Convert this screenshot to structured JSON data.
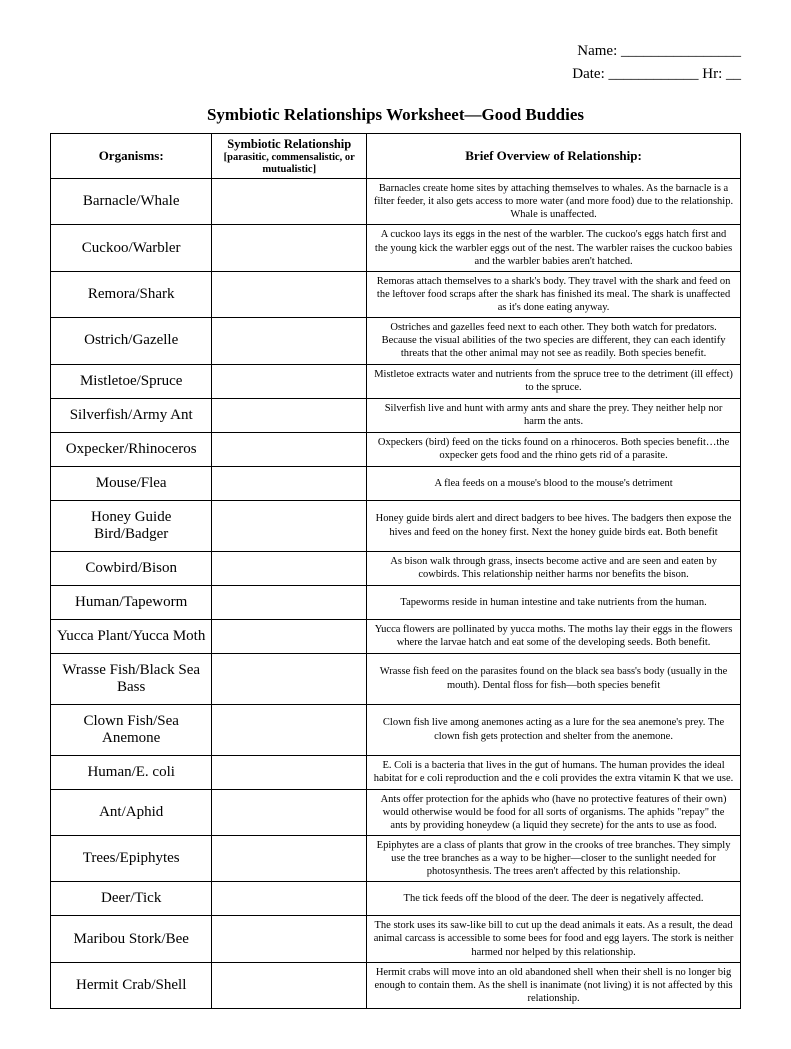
{
  "header": {
    "name_label": "Name: ________________",
    "date_label": "Date: ____________ Hr: __"
  },
  "title": "Symbiotic Relationships Worksheet—Good Buddies",
  "columns": {
    "c1": "Organisms:",
    "c2_main": "Symbiotic Relationship",
    "c2_sub": "[parasitic, commensalistic, or mutualistic]",
    "c3": "Brief Overview of Relationship:"
  },
  "rows": [
    {
      "organism": "Barnacle/Whale",
      "overview": "Barnacles create home sites by attaching themselves to whales.  As the barnacle is a filter feeder, it also gets access to more water (and more food) due to the relationship.  Whale is unaffected."
    },
    {
      "organism": "Cuckoo/Warbler",
      "overview": "A cuckoo lays its eggs in the nest of the warbler.  The cuckoo's eggs hatch first and the young kick the warbler eggs out of the nest.  The warbler raises the cuckoo babies and the warbler babies aren't hatched."
    },
    {
      "organism": "Remora/Shark",
      "overview": "Remoras attach themselves to a shark's body.  They travel with the shark and feed on the leftover food scraps after the shark has finished its meal.  The shark is unaffected as it's done eating anyway."
    },
    {
      "organism": "Ostrich/Gazelle",
      "overview": "Ostriches and gazelles feed next to each other.  They both watch for predators.  Because the visual abilities of the two species are different, they can each identify threats that the other animal may not see as readily.  Both species benefit."
    },
    {
      "organism": "Mistletoe/Spruce",
      "overview": "Mistletoe extracts water and nutrients from the spruce tree to the detriment (ill effect) to the spruce."
    },
    {
      "organism": "Silverfish/Army Ant",
      "overview": "Silverfish live and hunt with army ants and share the prey.  They neither help nor harm the ants."
    },
    {
      "organism": "Oxpecker/Rhinoceros",
      "overview": "Oxpeckers (bird) feed on the ticks found on a rhinoceros.  Both species benefit…the oxpecker gets food and the rhino gets rid of a parasite."
    },
    {
      "organism": "Mouse/Flea",
      "overview": "A flea feeds on a mouse's blood to the mouse's detriment"
    },
    {
      "organism": "Honey Guide Bird/Badger",
      "overview": "Honey guide birds alert and direct badgers to bee hives.  The badgers then expose the hives and feed on the honey first.  Next the honey guide birds eat. Both benefit"
    },
    {
      "organism": "Cowbird/Bison",
      "overview": "As bison walk through grass, insects become active and are seen and eaten by cowbirds.  This relationship neither harms nor benefits the bison."
    },
    {
      "organism": "Human/Tapeworm",
      "overview": "Tapeworms reside in human intestine and take nutrients from the human."
    },
    {
      "organism": "Yucca Plant/Yucca Moth",
      "overview": "Yucca flowers are pollinated by yucca moths.  The moths lay their eggs in the flowers where the larvae hatch and eat some of the developing seeds.  Both benefit."
    },
    {
      "organism": "Wrasse Fish/Black Sea Bass",
      "overview": "Wrasse fish feed on the parasites found on the black sea bass's body (usually in the mouth).  Dental floss for fish—both species benefit"
    },
    {
      "organism": "Clown Fish/Sea Anemone",
      "overview": "Clown fish live among anemones acting as a lure for the sea anemone's prey.  The clown fish gets protection and shelter from the anemone."
    },
    {
      "organism": "Human/E. coli",
      "overview": "E. Coli is a bacteria that lives in the gut of humans.  The human provides the ideal habitat for e coli reproduction and the e coli provides the extra vitamin K that we use."
    },
    {
      "organism": "Ant/Aphid",
      "overview": "Ants offer protection for the aphids who (have no protective features of their own) would otherwise would be food for all sorts of organisms.  The aphids \"repay\" the ants by providing honeydew (a liquid they secrete) for the ants to use as food."
    },
    {
      "organism": "Trees/Epiphytes",
      "overview": "Epiphytes are a class of plants that grow in the crooks of tree branches.  They simply use the tree branches as a way to be higher—closer to the sunlight needed for photosynthesis.  The trees aren't affected by this relationship."
    },
    {
      "organism": "Deer/Tick",
      "overview": "The tick feeds off the blood of the deer.  The deer is negatively affected."
    },
    {
      "organism": "Maribou Stork/Bee",
      "overview": "The stork uses its saw-like bill to cut up the dead animals it eats.  As a result, the dead animal carcass is accessible to some bees for food and egg layers.   The stork is neither harmed nor helped by this relationship."
    },
    {
      "organism": "Hermit Crab/Shell",
      "overview": "Hermit crabs will move into an old abandoned shell when their shell is no longer big enough to contain them.  As the shell is inanimate (not living) it is not affected by this relationship."
    }
  ]
}
